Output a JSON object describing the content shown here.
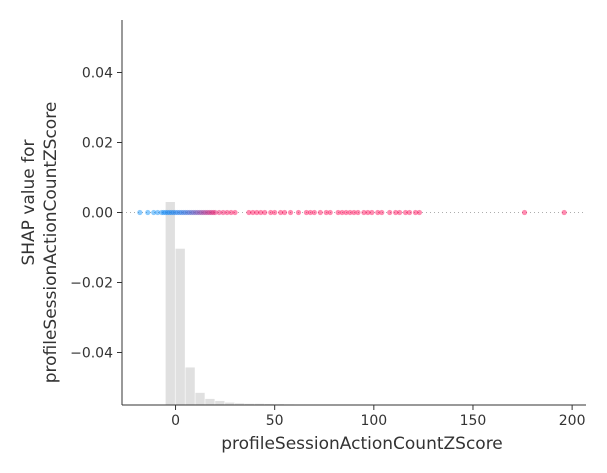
{
  "chart_data": {
    "type": "scatter",
    "title": "",
    "xlabel": "profileSessionActionCountZScore",
    "ylabel": [
      "SHAP value for",
      "profileSessionActionCountZScore"
    ],
    "xlim": [
      -27,
      207
    ],
    "ylim": [
      -0.055,
      0.055
    ],
    "xticks": [
      0,
      50,
      100,
      150,
      200
    ],
    "xtick_labels": [
      "0",
      "50",
      "100",
      "150",
      "200"
    ],
    "yticks": [
      0.04,
      0.02,
      0.0,
      -0.02,
      -0.04
    ],
    "ytick_labels": [
      "0.04",
      "0.02",
      "0.00",
      "−0.02",
      "−0.04"
    ],
    "reference_line_y": 0.0,
    "grid": false,
    "colormap": {
      "low": "#008bfb",
      "high": "#ff0052"
    },
    "histogram": {
      "color": "#e0e0e0",
      "bin_width": 5,
      "bins": [
        {
          "x0": -5,
          "rel_height": 1.0
        },
        {
          "x0": 0,
          "rel_height": 0.77
        },
        {
          "x0": 5,
          "rel_height": 0.185
        },
        {
          "x0": 10,
          "rel_height": 0.06
        },
        {
          "x0": 15,
          "rel_height": 0.03
        },
        {
          "x0": 20,
          "rel_height": 0.02
        },
        {
          "x0": 25,
          "rel_height": 0.012
        },
        {
          "x0": 30,
          "rel_height": 0.008
        },
        {
          "x0": 35,
          "rel_height": 0.006
        },
        {
          "x0": 40,
          "rel_height": 0.006
        },
        {
          "x0": 45,
          "rel_height": 0.005
        },
        {
          "x0": 50,
          "rel_height": 0.004
        },
        {
          "x0": 55,
          "rel_height": 0.003
        }
      ]
    },
    "points": [
      {
        "x": -18,
        "y": 0,
        "c": 0.0
      },
      {
        "x": -14,
        "y": 0,
        "c": 0.0
      },
      {
        "x": -11,
        "y": 0,
        "c": 0.0
      },
      {
        "x": -9,
        "y": 0,
        "c": 0.02
      },
      {
        "x": -7,
        "y": 0,
        "c": 0.03
      },
      {
        "x": -6,
        "y": 0,
        "c": 0.04
      },
      {
        "x": -5,
        "y": 0,
        "c": 0.05
      },
      {
        "x": -4,
        "y": 0,
        "c": 0.06
      },
      {
        "x": -3,
        "y": 0,
        "c": 0.07
      },
      {
        "x": -2,
        "y": 0,
        "c": 0.08
      },
      {
        "x": -1,
        "y": 0,
        "c": 0.09
      },
      {
        "x": 0,
        "y": 0,
        "c": 0.1
      },
      {
        "x": 1,
        "y": 0,
        "c": 0.12
      },
      {
        "x": 2,
        "y": 0,
        "c": 0.14
      },
      {
        "x": 3,
        "y": 0,
        "c": 0.16
      },
      {
        "x": 4,
        "y": 0,
        "c": 0.18
      },
      {
        "x": 5,
        "y": 0,
        "c": 0.2
      },
      {
        "x": 6,
        "y": 0,
        "c": 0.24
      },
      {
        "x": 7,
        "y": 0,
        "c": 0.28
      },
      {
        "x": 8,
        "y": 0,
        "c": 0.32
      },
      {
        "x": 9,
        "y": 0,
        "c": 0.36
      },
      {
        "x": 10,
        "y": 0,
        "c": 0.4
      },
      {
        "x": 11,
        "y": 0,
        "c": 0.45
      },
      {
        "x": 12,
        "y": 0,
        "c": 0.5
      },
      {
        "x": 13,
        "y": 0,
        "c": 0.55
      },
      {
        "x": 14,
        "y": 0,
        "c": 0.6
      },
      {
        "x": 15,
        "y": 0,
        "c": 0.65
      },
      {
        "x": 16,
        "y": 0,
        "c": 0.7
      },
      {
        "x": 17,
        "y": 0,
        "c": 0.75
      },
      {
        "x": 18,
        "y": 0,
        "c": 0.8
      },
      {
        "x": 19,
        "y": 0,
        "c": 0.84
      },
      {
        "x": 20,
        "y": 0,
        "c": 0.88
      },
      {
        "x": 22,
        "y": 0,
        "c": 0.92
      },
      {
        "x": 24,
        "y": 0,
        "c": 0.95
      },
      {
        "x": 26,
        "y": 0,
        "c": 0.97
      },
      {
        "x": 28,
        "y": 0,
        "c": 0.98
      },
      {
        "x": 30,
        "y": 0,
        "c": 0.99
      },
      {
        "x": 37,
        "y": 0,
        "c": 1.0
      },
      {
        "x": 39,
        "y": 0,
        "c": 1.0
      },
      {
        "x": 41,
        "y": 0,
        "c": 1.0
      },
      {
        "x": 43,
        "y": 0,
        "c": 1.0
      },
      {
        "x": 45,
        "y": 0,
        "c": 1.0
      },
      {
        "x": 48,
        "y": 0,
        "c": 1.0
      },
      {
        "x": 50,
        "y": 0,
        "c": 1.0
      },
      {
        "x": 53,
        "y": 0,
        "c": 1.0
      },
      {
        "x": 55,
        "y": 0,
        "c": 1.0
      },
      {
        "x": 58,
        "y": 0,
        "c": 1.0
      },
      {
        "x": 62,
        "y": 0,
        "c": 1.0
      },
      {
        "x": 66,
        "y": 0,
        "c": 1.0
      },
      {
        "x": 68,
        "y": 0,
        "c": 1.0
      },
      {
        "x": 70,
        "y": 0,
        "c": 1.0
      },
      {
        "x": 73,
        "y": 0,
        "c": 1.0
      },
      {
        "x": 76,
        "y": 0,
        "c": 1.0
      },
      {
        "x": 78,
        "y": 0,
        "c": 1.0
      },
      {
        "x": 82,
        "y": 0,
        "c": 1.0
      },
      {
        "x": 84,
        "y": 0,
        "c": 1.0
      },
      {
        "x": 86,
        "y": 0,
        "c": 1.0
      },
      {
        "x": 88,
        "y": 0,
        "c": 1.0
      },
      {
        "x": 90,
        "y": 0,
        "c": 1.0
      },
      {
        "x": 92,
        "y": 0,
        "c": 1.0
      },
      {
        "x": 95,
        "y": 0,
        "c": 1.0
      },
      {
        "x": 97,
        "y": 0,
        "c": 1.0
      },
      {
        "x": 99,
        "y": 0,
        "c": 1.0
      },
      {
        "x": 102,
        "y": 0,
        "c": 1.0
      },
      {
        "x": 104,
        "y": 0,
        "c": 1.0
      },
      {
        "x": 108,
        "y": 0,
        "c": 1.0
      },
      {
        "x": 111,
        "y": 0,
        "c": 1.0
      },
      {
        "x": 113,
        "y": 0,
        "c": 1.0
      },
      {
        "x": 116,
        "y": 0,
        "c": 1.0
      },
      {
        "x": 118,
        "y": 0,
        "c": 1.0
      },
      {
        "x": 121,
        "y": 0,
        "c": 1.0
      },
      {
        "x": 123,
        "y": 0,
        "c": 1.0
      },
      {
        "x": 176,
        "y": 0,
        "c": 1.0
      },
      {
        "x": 196,
        "y": 0,
        "c": 1.0
      }
    ]
  }
}
